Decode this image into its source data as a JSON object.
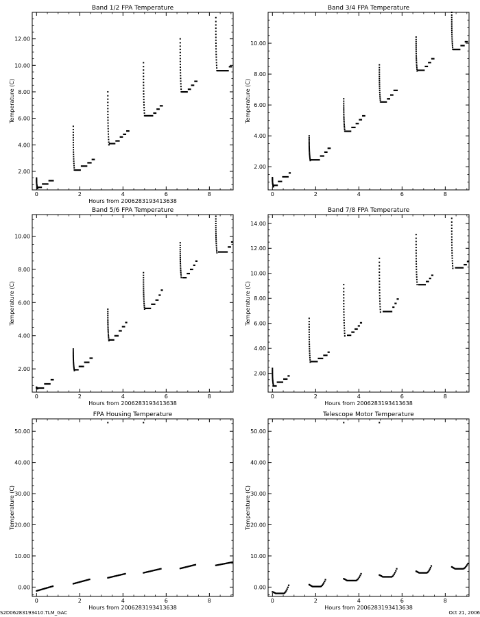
{
  "footer": {
    "left": "S2D06283193410.TLM_GAC",
    "right": "Oct 21, 2006"
  },
  "chart_data": [
    {
      "type": "scatter",
      "title": "Band 1/2 FPA Temperature",
      "xlabel": "Hours from 2006283193413638",
      "ylabel": "Temperature (C)",
      "xlim": [
        -0.2,
        9.1
      ],
      "ylim": [
        0.6,
        14.0
      ],
      "xticks": [
        0,
        2,
        4,
        6,
        8
      ],
      "xtick_labels": [
        "0",
        "2",
        "4",
        "6",
        "8"
      ],
      "yticks": [
        2,
        4,
        6,
        8,
        10,
        12
      ],
      "ytick_labels": [
        "2.00",
        "4.00",
        "6.00",
        "8.00",
        "10.00",
        "12.00"
      ],
      "cycles": [
        {
          "t0": 0.0,
          "peak": 1.5,
          "min": 0.7,
          "plateaus": [
            [
              0.0,
              0.25,
              0.8
            ],
            [
              0.25,
              0.55,
              1.05
            ],
            [
              0.55,
              0.8,
              1.3
            ]
          ]
        },
        {
          "t0": 1.7,
          "peak": 5.4,
          "min": 2.1,
          "plateaus": [
            [
              1.75,
              2.05,
              2.1
            ],
            [
              2.05,
              2.35,
              2.4
            ],
            [
              2.35,
              2.55,
              2.65
            ],
            [
              2.55,
              2.7,
              2.9
            ]
          ]
        },
        {
          "t0": 3.3,
          "peak": 8.0,
          "min": 4.0,
          "plateaus": [
            [
              3.35,
              3.65,
              4.1
            ],
            [
              3.65,
              3.85,
              4.3
            ],
            [
              3.85,
              4.0,
              4.6
            ],
            [
              4.0,
              4.15,
              4.8
            ],
            [
              4.15,
              4.3,
              5.05
            ]
          ]
        },
        {
          "t0": 4.95,
          "peak": 10.2,
          "min": 6.2,
          "plateaus": [
            [
              5.0,
              5.4,
              6.2
            ],
            [
              5.4,
              5.55,
              6.4
            ],
            [
              5.55,
              5.7,
              6.7
            ],
            [
              5.7,
              5.85,
              6.95
            ]
          ]
        },
        {
          "t0": 6.65,
          "peak": 12.0,
          "min": 8.0,
          "plateaus": [
            [
              6.7,
              7.0,
              8.0
            ],
            [
              7.0,
              7.15,
              8.2
            ],
            [
              7.15,
              7.3,
              8.5
            ],
            [
              7.3,
              7.45,
              8.8
            ]
          ]
        },
        {
          "t0": 8.3,
          "peak": 13.6,
          "min": 9.6,
          "plateaus": [
            [
              8.35,
              8.9,
              9.6
            ],
            [
              8.9,
              9.05,
              9.9
            ]
          ]
        }
      ]
    },
    {
      "type": "scatter",
      "title": "Band 3/4 FPA Temperature",
      "xlabel": "",
      "ylabel": "Temperature (C)",
      "xlim": [
        -0.2,
        9.1
      ],
      "ylim": [
        0.5,
        12.0
      ],
      "xticks": [
        0,
        2,
        4,
        6,
        8
      ],
      "xtick_labels": [
        "0",
        "2",
        "4",
        "6",
        "8"
      ],
      "yticks": [
        2,
        4,
        6,
        8,
        10
      ],
      "ytick_labels": [
        "2.00",
        "4.00",
        "6.00",
        "8.00",
        "10.00"
      ],
      "cycles": [
        {
          "t0": 0.0,
          "peak": 1.3,
          "min": 0.7,
          "plateaus": [
            [
              0.0,
              0.25,
              0.8
            ],
            [
              0.25,
              0.45,
              1.05
            ],
            [
              0.45,
              0.75,
              1.35
            ],
            [
              0.75,
              0.85,
              1.6
            ]
          ]
        },
        {
          "t0": 1.7,
          "peak": 4.0,
          "min": 2.4,
          "plateaus": [
            [
              1.75,
              2.2,
              2.45
            ],
            [
              2.2,
              2.4,
              2.7
            ],
            [
              2.4,
              2.55,
              2.95
            ],
            [
              2.55,
              2.7,
              3.2
            ]
          ]
        },
        {
          "t0": 3.3,
          "peak": 6.4,
          "min": 4.3,
          "plateaus": [
            [
              3.35,
              3.65,
              4.3
            ],
            [
              3.65,
              3.85,
              4.55
            ],
            [
              3.85,
              4.0,
              4.8
            ],
            [
              4.0,
              4.15,
              5.05
            ],
            [
              4.15,
              4.3,
              5.3
            ]
          ]
        },
        {
          "t0": 4.95,
          "peak": 8.6,
          "min": 6.2,
          "plateaus": [
            [
              5.0,
              5.3,
              6.2
            ],
            [
              5.3,
              5.45,
              6.4
            ],
            [
              5.45,
              5.6,
              6.65
            ],
            [
              5.6,
              5.8,
              6.95
            ]
          ]
        },
        {
          "t0": 6.65,
          "peak": 10.4,
          "min": 8.2,
          "plateaus": [
            [
              6.7,
              7.05,
              8.25
            ],
            [
              7.05,
              7.2,
              8.5
            ],
            [
              7.2,
              7.35,
              8.75
            ],
            [
              7.35,
              7.5,
              9.0
            ]
          ]
        },
        {
          "t0": 8.3,
          "peak": 12.0,
          "min": 9.6,
          "plateaus": [
            [
              8.35,
              8.7,
              9.6
            ],
            [
              8.7,
              8.9,
              9.85
            ],
            [
              8.9,
              9.05,
              10.1
            ]
          ]
        }
      ]
    },
    {
      "type": "scatter",
      "title": "Band 5/6 FPA Temperature",
      "xlabel": "Hours from 2006283193413638",
      "ylabel": "Temperature (C)",
      "xlim": [
        -0.2,
        9.1
      ],
      "ylim": [
        0.6,
        11.3
      ],
      "xticks": [
        0,
        2,
        4,
        6,
        8
      ],
      "xtick_labels": [
        "0",
        "2",
        "4",
        "6",
        "8"
      ],
      "yticks": [
        2,
        4,
        6,
        8,
        10
      ],
      "ytick_labels": [
        "2.00",
        "4.00",
        "6.00",
        "8.00",
        "10.00"
      ],
      "cycles": [
        {
          "t0": 0.0,
          "peak": 0.9,
          "min": 0.8,
          "plateaus": [
            [
              0.0,
              0.35,
              0.85
            ],
            [
              0.35,
              0.65,
              1.1
            ],
            [
              0.65,
              0.8,
              1.35
            ]
          ]
        },
        {
          "t0": 1.7,
          "peak": 3.2,
          "min": 1.9,
          "plateaus": [
            [
              1.75,
              1.95,
              1.95
            ],
            [
              1.95,
              2.2,
              2.15
            ],
            [
              2.2,
              2.45,
              2.4
            ],
            [
              2.45,
              2.6,
              2.65
            ]
          ]
        },
        {
          "t0": 3.3,
          "peak": 5.6,
          "min": 3.7,
          "plateaus": [
            [
              3.35,
              3.6,
              3.75
            ],
            [
              3.6,
              3.8,
              4.0
            ],
            [
              3.8,
              3.95,
              4.3
            ],
            [
              3.95,
              4.1,
              4.55
            ],
            [
              4.1,
              4.2,
              4.8
            ]
          ]
        },
        {
          "t0": 4.95,
          "peak": 7.8,
          "min": 5.6,
          "plateaus": [
            [
              5.0,
              5.3,
              5.65
            ],
            [
              5.3,
              5.5,
              5.9
            ],
            [
              5.5,
              5.65,
              6.15
            ],
            [
              5.65,
              5.75,
              6.45
            ],
            [
              5.75,
              5.85,
              6.75
            ]
          ]
        },
        {
          "t0": 6.65,
          "peak": 9.6,
          "min": 7.5,
          "plateaus": [
            [
              6.75,
              6.95,
              7.5
            ],
            [
              6.95,
              7.1,
              7.75
            ],
            [
              7.1,
              7.25,
              8.0
            ],
            [
              7.25,
              7.35,
              8.25
            ],
            [
              7.35,
              7.45,
              8.5
            ]
          ]
        },
        {
          "t0": 8.3,
          "peak": 11.2,
          "min": 9.0,
          "plateaus": [
            [
              8.4,
              8.85,
              9.05
            ],
            [
              8.85,
              9.0,
              9.35
            ],
            [
              9.0,
              9.1,
              9.65
            ]
          ]
        }
      ]
    },
    {
      "type": "scatter",
      "title": "Band 7/8 FPA Temperature",
      "xlabel": "Hours from 2006283193413638",
      "ylabel": "Temperature (C)",
      "xlim": [
        -0.2,
        9.1
      ],
      "ylim": [
        0.5,
        14.7
      ],
      "xticks": [
        0,
        2,
        4,
        6,
        8
      ],
      "xtick_labels": [
        "0",
        "2",
        "4",
        "6",
        "8"
      ],
      "yticks": [
        2,
        4,
        6,
        8,
        10,
        12,
        14
      ],
      "ytick_labels": [
        "2.00",
        "4.00",
        "6.00",
        "8.00",
        "10.00",
        "12.00",
        "14.00"
      ],
      "cycles": [
        {
          "t0": 0.0,
          "peak": 2.4,
          "min": 1.0,
          "plateaus": [
            [
              0.0,
              0.2,
              1.0
            ],
            [
              0.2,
              0.5,
              1.3
            ],
            [
              0.5,
              0.7,
              1.55
            ],
            [
              0.7,
              0.8,
              1.8
            ]
          ]
        },
        {
          "t0": 1.7,
          "peak": 6.4,
          "min": 2.9,
          "plateaus": [
            [
              1.75,
              2.1,
              2.95
            ],
            [
              2.1,
              2.35,
              3.2
            ],
            [
              2.35,
              2.55,
              3.45
            ],
            [
              2.55,
              2.65,
              3.7
            ]
          ]
        },
        {
          "t0": 3.3,
          "peak": 9.1,
          "min": 5.0,
          "plateaus": [
            [
              3.45,
              3.65,
              5.05
            ],
            [
              3.65,
              3.8,
              5.3
            ],
            [
              3.8,
              3.95,
              5.55
            ],
            [
              3.95,
              4.05,
              5.8
            ],
            [
              4.05,
              4.15,
              6.05
            ]
          ]
        },
        {
          "t0": 4.95,
          "peak": 11.2,
          "min": 6.9,
          "plateaus": [
            [
              5.1,
              5.55,
              6.95
            ],
            [
              5.55,
              5.65,
              7.3
            ],
            [
              5.65,
              5.75,
              7.6
            ],
            [
              5.75,
              5.85,
              7.95
            ]
          ]
        },
        {
          "t0": 6.65,
          "peak": 13.1,
          "min": 9.1,
          "plateaus": [
            [
              6.75,
              7.1,
              9.1
            ],
            [
              7.1,
              7.25,
              9.35
            ],
            [
              7.25,
              7.35,
              9.6
            ],
            [
              7.35,
              7.45,
              9.85
            ]
          ]
        },
        {
          "t0": 8.3,
          "peak": 14.4,
          "min": 10.4,
          "plateaus": [
            [
              8.45,
              8.85,
              10.45
            ],
            [
              8.85,
              9.0,
              10.7
            ],
            [
              9.0,
              9.1,
              10.95
            ]
          ]
        }
      ]
    },
    {
      "type": "scatter",
      "title": "FPA Housing Temperature",
      "xlabel": "Hours from 2006283193413638",
      "ylabel": "Temperature (C)",
      "xlim": [
        -0.2,
        9.1
      ],
      "ylim": [
        -3.0,
        54.0
      ],
      "xticks": [
        0,
        2,
        4,
        6,
        8
      ],
      "xtick_labels": [
        "0",
        "2",
        "4",
        "6",
        "8"
      ],
      "yticks": [
        0,
        10,
        20,
        30,
        40,
        50
      ],
      "ytick_labels": [
        "0.00",
        "10.00",
        "20.00",
        "30.00",
        "40.00",
        "50.00"
      ],
      "outliers": [
        [
          3.3,
          52.8
        ],
        [
          4.95,
          52.8
        ]
      ],
      "segments": [
        {
          "x0": 0.0,
          "x1": 0.75,
          "y0": -1.2,
          "y1": 0.3
        },
        {
          "x0": 1.7,
          "x1": 2.45,
          "y0": 1.1,
          "y1": 2.5
        },
        {
          "x0": 3.3,
          "x1": 4.1,
          "y0": 3.0,
          "y1": 4.3
        },
        {
          "x0": 4.95,
          "x1": 5.75,
          "y0": 4.6,
          "y1": 5.9
        },
        {
          "x0": 6.65,
          "x1": 7.35,
          "y0": 6.0,
          "y1": 7.2
        },
        {
          "x0": 8.3,
          "x1": 9.05,
          "y0": 7.0,
          "y1": 8.0
        }
      ]
    },
    {
      "type": "scatter",
      "title": "Telescope Motor Temperature",
      "xlabel": "Hours from 2006283193413638",
      "ylabel": "Temperature (C)",
      "xlim": [
        -0.2,
        9.1
      ],
      "ylim": [
        -3.0,
        54.0
      ],
      "xticks": [
        0,
        2,
        4,
        6,
        8
      ],
      "xtick_labels": [
        "0",
        "2",
        "4",
        "6",
        "8"
      ],
      "yticks": [
        0,
        10,
        20,
        30,
        40,
        50
      ],
      "ytick_labels": [
        "0.00",
        "10.00",
        "20.00",
        "30.00",
        "40.00",
        "50.00"
      ],
      "outliers": [
        [
          3.3,
          52.8
        ],
        [
          4.95,
          52.8
        ]
      ],
      "curves": [
        {
          "x0": 0.0,
          "x1": 0.75,
          "start": -1.5,
          "min": -2.0,
          "end": 0.6
        },
        {
          "x0": 1.7,
          "x1": 2.45,
          "start": 0.8,
          "min": 0.2,
          "end": 2.4
        },
        {
          "x0": 3.3,
          "x1": 4.1,
          "start": 2.7,
          "min": 2.1,
          "end": 4.3
        },
        {
          "x0": 4.95,
          "x1": 5.75,
          "start": 3.9,
          "min": 3.3,
          "end": 5.9
        },
        {
          "x0": 6.65,
          "x1": 7.35,
          "start": 5.1,
          "min": 4.6,
          "end": 6.8
        },
        {
          "x0": 8.3,
          "x1": 9.05,
          "start": 6.5,
          "min": 5.9,
          "end": 7.6
        }
      ]
    }
  ]
}
